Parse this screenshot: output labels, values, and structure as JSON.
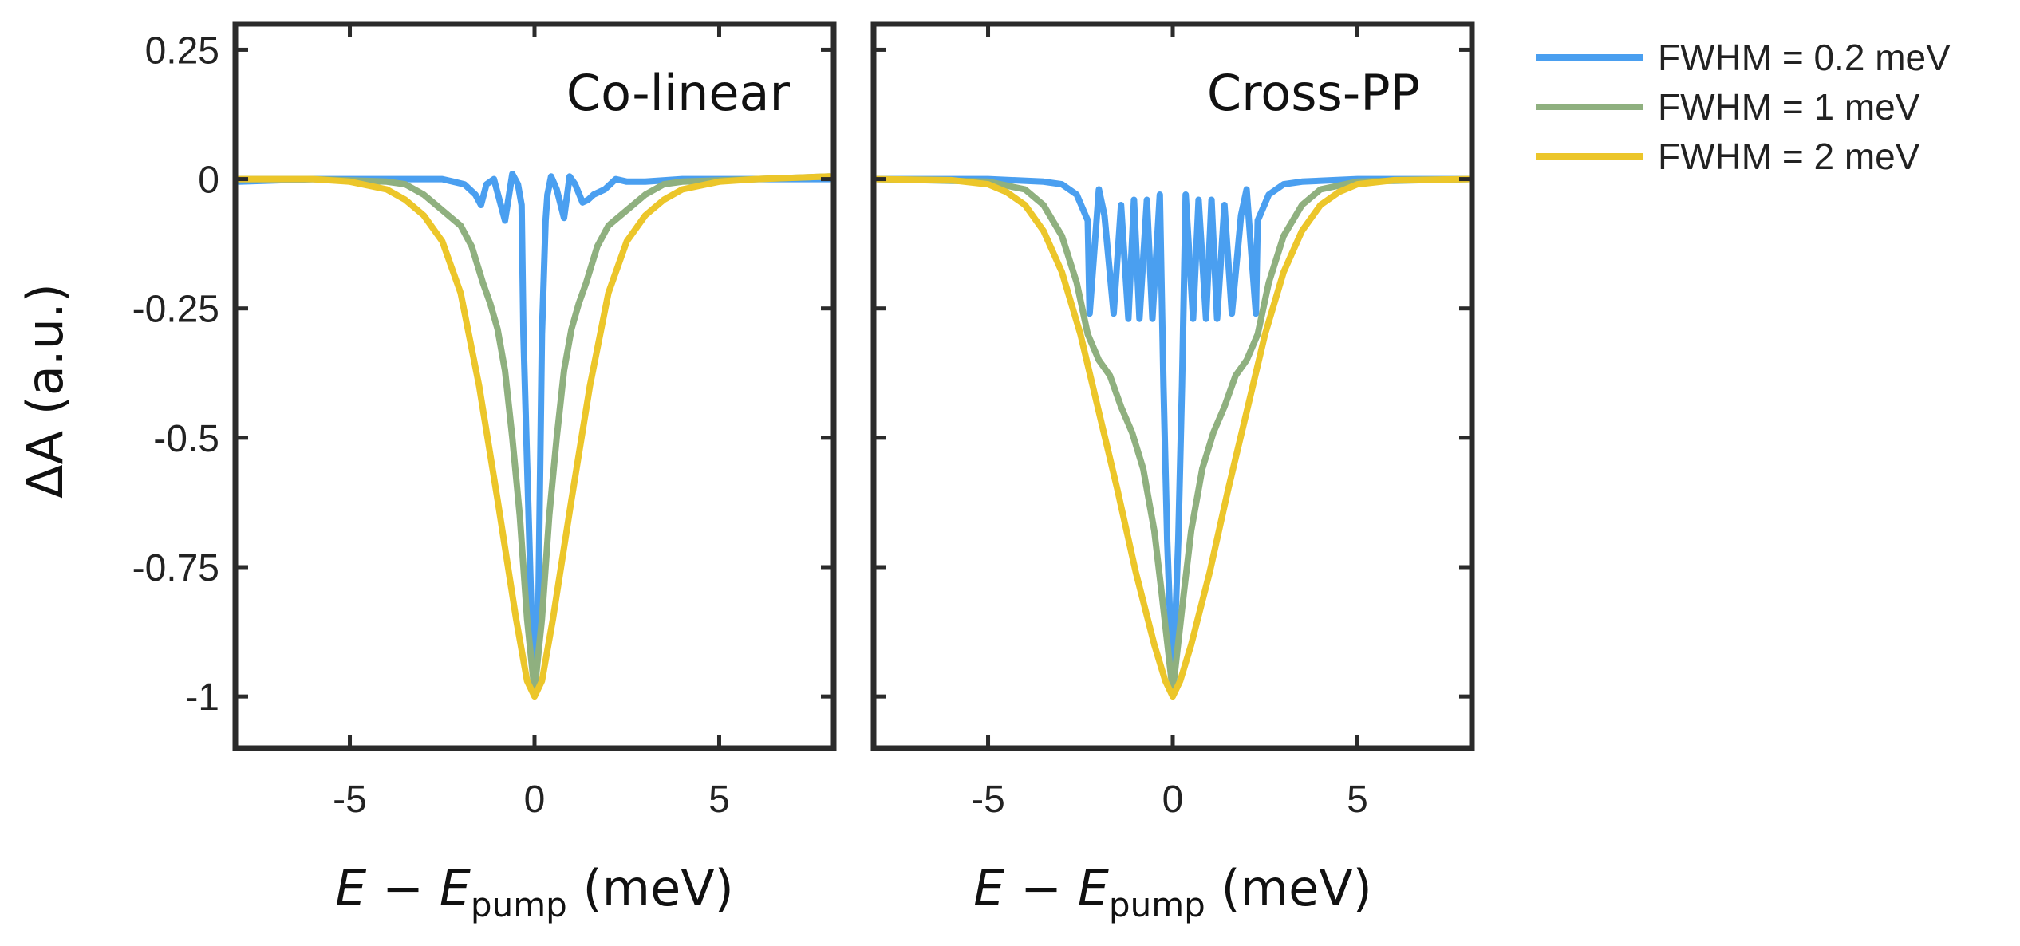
{
  "chart_data": [
    {
      "type": "line",
      "title": "Co-linear",
      "xlabel": "E − E_pump (meV)",
      "ylabel": "ΔA (a.u.)",
      "xlim": [
        -8.1,
        8.1
      ],
      "ylim": [
        -1.1,
        0.3
      ],
      "xticks": [
        -5,
        0,
        5
      ],
      "xtick_labels": [
        "-5",
        "0",
        "5"
      ],
      "yticks": [
        0.25,
        0,
        -0.25,
        -0.5,
        -0.75,
        -1
      ],
      "ytick_labels": [
        "0.25",
        "0",
        "-0.25",
        "-0.5",
        "-0.75",
        "-1"
      ],
      "series": [
        {
          "name": "FWHM = 0.2 meV",
          "color": "#4a9ff0",
          "x": [
            -8,
            -6,
            -4,
            -3,
            -2.5,
            -2.2,
            -1.9,
            -1.6,
            -1.45,
            -1.3,
            -1.1,
            -0.95,
            -0.8,
            -0.6,
            -0.45,
            -0.35,
            -0.3,
            -0.2,
            -0.1,
            0,
            0.1,
            0.2,
            0.3,
            0.35,
            0.45,
            0.6,
            0.8,
            0.95,
            1.1,
            1.3,
            1.45,
            1.6,
            1.9,
            2.2,
            2.5,
            3,
            4,
            6,
            8
          ],
          "y": [
            -0.005,
            0,
            0,
            0,
            0,
            -0.005,
            -0.01,
            -0.03,
            -0.05,
            -0.01,
            0,
            -0.04,
            -0.08,
            0.01,
            -0.01,
            -0.05,
            -0.3,
            -0.55,
            -0.8,
            -0.99,
            -0.85,
            -0.3,
            -0.08,
            -0.03,
            0.005,
            -0.02,
            -0.075,
            0.005,
            -0.01,
            -0.045,
            -0.04,
            -0.03,
            -0.02,
            0,
            -0.005,
            -0.005,
            0,
            0,
            0
          ]
        },
        {
          "name": "FWHM = 1 meV",
          "color": "#8fb07f",
          "x": [
            -8,
            -6,
            -4,
            -3.5,
            -3,
            -2.5,
            -2,
            -1.7,
            -1.4,
            -1.2,
            -1,
            -0.8,
            -0.6,
            -0.4,
            -0.2,
            0,
            0.2,
            0.4,
            0.6,
            0.8,
            1,
            1.2,
            1.4,
            1.7,
            2,
            2.5,
            3,
            3.5,
            4,
            6,
            8
          ],
          "y": [
            0,
            0,
            -0.005,
            -0.01,
            -0.03,
            -0.06,
            -0.09,
            -0.13,
            -0.2,
            -0.24,
            -0.29,
            -0.37,
            -0.5,
            -0.65,
            -0.85,
            -0.99,
            -0.85,
            -0.65,
            -0.5,
            -0.37,
            -0.29,
            -0.24,
            -0.2,
            -0.13,
            -0.09,
            -0.06,
            -0.03,
            -0.01,
            -0.005,
            0,
            0.005
          ]
        },
        {
          "name": "FWHM = 2 meV",
          "color": "#ecc62a",
          "x": [
            -8,
            -6,
            -5,
            -4,
            -3.5,
            -3,
            -2.5,
            -2,
            -1.5,
            -1,
            -0.5,
            -0.2,
            0,
            0.2,
            0.5,
            1,
            1.5,
            2,
            2.5,
            3,
            3.5,
            4,
            5,
            6,
            8
          ],
          "y": [
            0,
            0,
            -0.005,
            -0.02,
            -0.04,
            -0.07,
            -0.12,
            -0.22,
            -0.4,
            -0.62,
            -0.85,
            -0.97,
            -1,
            -0.97,
            -0.85,
            -0.62,
            -0.4,
            -0.22,
            -0.12,
            -0.07,
            -0.04,
            -0.02,
            -0.005,
            0,
            0.005
          ]
        }
      ]
    },
    {
      "type": "line",
      "title": "Cross-PP",
      "xlabel": "E − E_pump (meV)",
      "ylabel": "",
      "xlim": [
        -8.1,
        8.1
      ],
      "ylim": [
        -1.1,
        0.3
      ],
      "xticks": [
        -5,
        0,
        5
      ],
      "xtick_labels": [
        "-5",
        "0",
        "5"
      ],
      "yticks": [
        0.25,
        0,
        -0.25,
        -0.5,
        -0.75,
        -1
      ],
      "ytick_labels": [
        "",
        "",
        "",
        "",
        "",
        ""
      ],
      "series": [
        {
          "name": "FWHM = 0.2 meV",
          "color": "#4a9ff0",
          "x": [
            -8,
            -5,
            -3.5,
            -3,
            -2.6,
            -2.3,
            -2.25,
            -2,
            -1.85,
            -1.6,
            -1.4,
            -1.2,
            -1.05,
            -0.9,
            -0.7,
            -0.55,
            -0.35,
            -0.25,
            -0.15,
            0,
            0.15,
            0.25,
            0.35,
            0.55,
            0.7,
            0.9,
            1.05,
            1.2,
            1.4,
            1.6,
            1.85,
            2,
            2.25,
            2.3,
            2.6,
            3,
            3.5,
            5,
            8
          ],
          "y": [
            0,
            0,
            -0.005,
            -0.01,
            -0.03,
            -0.08,
            -0.26,
            -0.02,
            -0.07,
            -0.26,
            -0.05,
            -0.27,
            -0.04,
            -0.27,
            -0.04,
            -0.27,
            -0.03,
            -0.4,
            -0.7,
            -0.99,
            -0.7,
            -0.4,
            -0.03,
            -0.27,
            -0.04,
            -0.27,
            -0.04,
            -0.27,
            -0.05,
            -0.26,
            -0.07,
            -0.02,
            -0.26,
            -0.08,
            -0.03,
            -0.01,
            -0.005,
            0,
            0
          ]
        },
        {
          "name": "FWHM = 1 meV",
          "color": "#8fb07f",
          "x": [
            -8,
            -5,
            -4,
            -3.5,
            -3,
            -2.6,
            -2.3,
            -2,
            -1.7,
            -1.4,
            -1.1,
            -0.8,
            -0.5,
            -0.3,
            0,
            0.3,
            0.5,
            0.8,
            1.1,
            1.4,
            1.7,
            2,
            2.3,
            2.6,
            3,
            3.5,
            4,
            5,
            8
          ],
          "y": [
            0,
            -0.005,
            -0.02,
            -0.05,
            -0.11,
            -0.2,
            -0.3,
            -0.35,
            -0.38,
            -0.44,
            -0.49,
            -0.56,
            -0.68,
            -0.8,
            -0.99,
            -0.8,
            -0.68,
            -0.56,
            -0.49,
            -0.44,
            -0.38,
            -0.35,
            -0.3,
            -0.2,
            -0.11,
            -0.05,
            -0.02,
            -0.005,
            0
          ]
        },
        {
          "name": "FWHM = 2 meV",
          "color": "#ecc62a",
          "x": [
            -8,
            -6,
            -5,
            -4.5,
            -4,
            -3.5,
            -3,
            -2.5,
            -2,
            -1.5,
            -1,
            -0.5,
            -0.2,
            0,
            0.2,
            0.5,
            1,
            1.5,
            2,
            2.5,
            3,
            3.5,
            4,
            4.5,
            5,
            6,
            8
          ],
          "y": [
            0,
            -0.002,
            -0.01,
            -0.025,
            -0.05,
            -0.1,
            -0.18,
            -0.3,
            -0.45,
            -0.6,
            -0.76,
            -0.9,
            -0.97,
            -1,
            -0.97,
            -0.9,
            -0.76,
            -0.6,
            -0.45,
            -0.3,
            -0.18,
            -0.1,
            -0.05,
            -0.025,
            -0.01,
            -0.002,
            0
          ]
        }
      ]
    }
  ],
  "legend": {
    "entries": [
      {
        "label": "FWHM = 0.2 meV",
        "color": "#4a9ff0"
      },
      {
        "label": "FWHM = 1 meV",
        "color": "#8fb07f"
      },
      {
        "label": "FWHM = 2 meV",
        "color": "#ecc62a"
      }
    ]
  },
  "axis_labels": {
    "ylabel": "ΔA (a.u.)",
    "xlabel_left": {
      "italic_e": "E",
      "minus": " − ",
      "italic_e2": "E",
      "subscript": "pump",
      "units": " (meV)"
    },
    "xlabel_right": {
      "italic_e": "E",
      "minus": " − ",
      "italic_e2": "E",
      "subscript": "pump",
      "units": " (meV)"
    }
  }
}
